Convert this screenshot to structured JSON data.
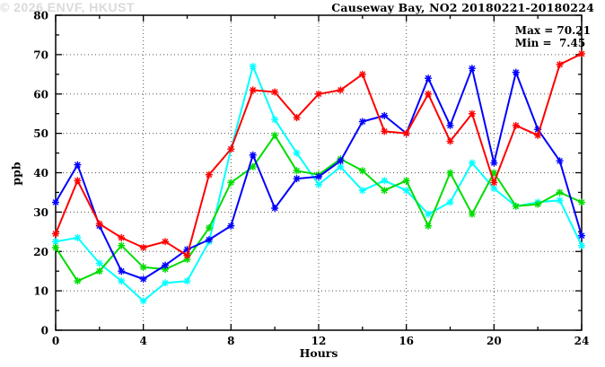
{
  "title": "Causeway Bay, NO2 20180221-20180224",
  "annotations": {
    "max": "Max = 70.21",
    "min": "Min =  7.45"
  },
  "watermark": "© 2026 ENVF, HKUST",
  "axis_labels": {
    "x": "Hours",
    "y": "ppb"
  },
  "chart_data": {
    "type": "line",
    "title": "Causeway Bay, NO2 20180221-20180224",
    "xlabel": "Hours",
    "ylabel": "ppb",
    "xlim": [
      0,
      24
    ],
    "ylim": [
      0,
      80
    ],
    "x_major_ticks": [
      0,
      4,
      8,
      12,
      16,
      20,
      24
    ],
    "x_minor_ticks": [
      2,
      6,
      10,
      14,
      18,
      22
    ],
    "y_major_ticks": [
      0,
      10,
      20,
      30,
      40,
      50,
      60,
      70,
      80
    ],
    "y_minor_ticks": [
      5,
      15,
      25,
      35,
      45,
      55,
      65,
      75
    ],
    "grid": true,
    "legend": "none",
    "marker": "asterisk",
    "max_value": 70.21,
    "min_value": 7.45,
    "x": [
      0,
      1,
      2,
      3,
      4,
      5,
      6,
      7,
      8,
      9,
      10,
      11,
      12,
      13,
      14,
      15,
      16,
      17,
      18,
      19,
      20,
      21,
      22,
      23,
      24
    ],
    "series": [
      {
        "name": "series-cyan",
        "color": "#00ffff",
        "values": [
          22.5,
          23.5,
          17,
          12.5,
          7.45,
          12,
          12.5,
          22.5,
          46,
          67,
          53.5,
          45,
          37,
          41.5,
          35.5,
          38,
          35.5,
          29.5,
          32.5,
          42.5,
          36,
          31.5,
          32.5,
          33,
          21.5
        ]
      },
      {
        "name": "series-green",
        "color": "#00dd00",
        "values": [
          21,
          12.5,
          15,
          21.5,
          16,
          15.5,
          18,
          26,
          37.5,
          41.5,
          49.5,
          40.5,
          39.5,
          43.5,
          40.5,
          35.5,
          38,
          26.5,
          40,
          29.5,
          40,
          31.5,
          32,
          35,
          32.5
        ]
      },
      {
        "name": "series-blue",
        "color": "#0000ff",
        "values": [
          32.5,
          42,
          26.5,
          15,
          13,
          16.5,
          20.5,
          23,
          26.5,
          44.5,
          31,
          38.5,
          39,
          43,
          53,
          54.5,
          50,
          64,
          52,
          66.5,
          42.5,
          65.5,
          51,
          43,
          24
        ]
      },
      {
        "name": "series-red",
        "color": "#ff0000",
        "values": [
          24.5,
          38,
          27,
          23.5,
          21,
          22.5,
          19,
          39.5,
          46,
          61,
          60.5,
          54,
          60,
          61,
          65,
          50.5,
          50,
          60,
          48,
          55,
          37.5,
          52,
          49.5,
          67.5,
          70.21
        ]
      }
    ],
    "colors": {
      "frame": "#000000",
      "grid": "#555555",
      "background": "#ffffff"
    }
  }
}
